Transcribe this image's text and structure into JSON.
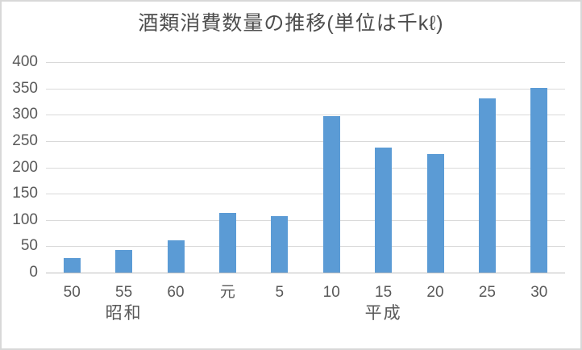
{
  "chart_data": {
    "type": "bar",
    "title": "酒類消費数量の推移(単位は千kℓ)",
    "categories": [
      "50",
      "55",
      "60",
      "元",
      "5",
      "10",
      "15",
      "20",
      "25",
      "30"
    ],
    "values": [
      27,
      43,
      62,
      113,
      107,
      298,
      237,
      226,
      331,
      351
    ],
    "xlabel": "",
    "ylabel": "",
    "ylim": [
      0,
      400
    ],
    "y_ticks": [
      400,
      350,
      300,
      250,
      200,
      150,
      100,
      50,
      0
    ],
    "grid": true,
    "legend": false,
    "era_groups": [
      {
        "label": "昭和",
        "start_index": 0,
        "end_index": 2
      },
      {
        "label": "平成",
        "start_index": 3,
        "end_index": 9
      }
    ]
  },
  "colors": {
    "bar": "#5B9BD5",
    "gridline": "#D9D9D9",
    "axis_line": "#BFBFBF",
    "tick_label": "#595959",
    "title": "#4D4D4D",
    "frame_border": "#D8D8D8",
    "background": "#FFFFFF"
  }
}
